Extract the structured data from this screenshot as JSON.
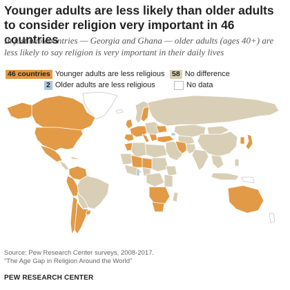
{
  "title": "Younger adults are less likely than older adults to consider religion very important in 46 countries",
  "subtitle": "In just two countries — Georgia and Ghana — older adults (ages 40+) are less likely to say religion is very important in their daily lives",
  "legend": {
    "younger": {
      "count": "46 countries",
      "label": "Younger adults are less religious"
    },
    "older": {
      "count": "2",
      "label": "Older adults are less religious"
    },
    "nodiff": {
      "count": "58",
      "label": "No difference"
    },
    "nodata": {
      "label": "No data"
    }
  },
  "colors": {
    "younger": "#e29a46",
    "older": "#a9c8e2",
    "nodiff": "#d9cfb6",
    "nodata": "#ffffff",
    "border": "#ffffff"
  },
  "source": {
    "line1": "Source: Pew Research Center surveys, 2008-2017.",
    "line2": "“The Age Gap in Religion Around the World”"
  },
  "credit": "PEW RESEARCH CENTER"
}
